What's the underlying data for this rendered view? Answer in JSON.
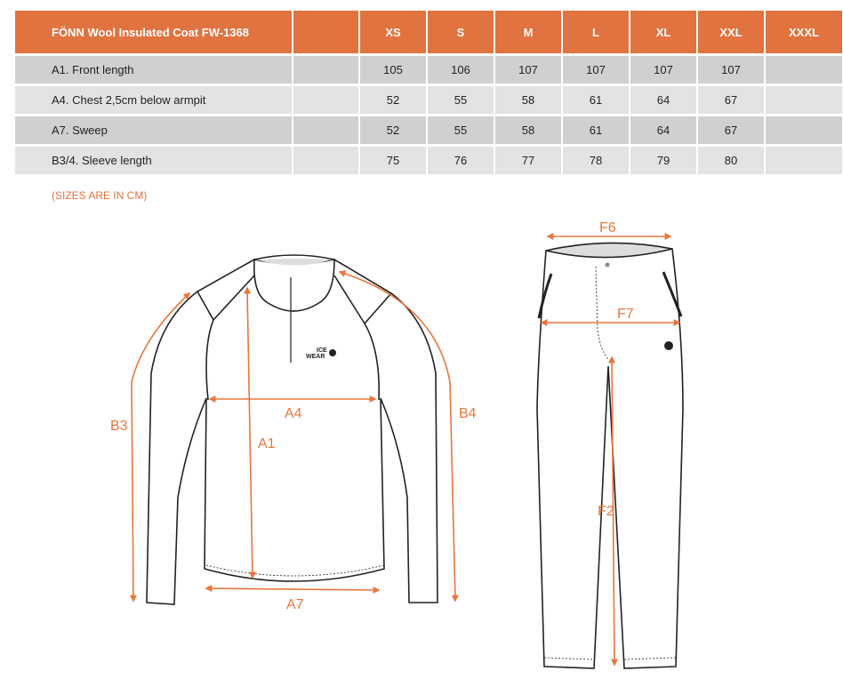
{
  "table": {
    "title": "FÖNN Wool Insulated Coat FW-1368",
    "sizes": [
      "XS",
      "S",
      "M",
      "L",
      "XL",
      "XXL",
      "XXXL"
    ],
    "rows": [
      {
        "label": "A1. Front length",
        "values": [
          "105",
          "106",
          "107",
          "107",
          "107",
          "107",
          ""
        ]
      },
      {
        "label": "A4. Chest 2,5cm below armpit",
        "values": [
          "52",
          "55",
          "58",
          "61",
          "64",
          "67",
          ""
        ]
      },
      {
        "label": "A7. Sweep",
        "values": [
          "52",
          "55",
          "58",
          "61",
          "64",
          "67",
          ""
        ]
      },
      {
        "label": "B3/4. Sleeve length",
        "values": [
          "75",
          "76",
          "77",
          "78",
          "79",
          "80",
          ""
        ]
      }
    ]
  },
  "note": "(SIZES ARE IN CM)",
  "diagram": {
    "accent": "#e8763d",
    "jacket_labels": {
      "a1": "A1",
      "a4": "A4",
      "a7": "A7",
      "b3": "B3",
      "b4": "B4"
    },
    "pants_labels": {
      "f6": "F6",
      "f7": "F7",
      "f2": "F2"
    },
    "logo_text": [
      "ICE",
      "WEAR"
    ]
  }
}
